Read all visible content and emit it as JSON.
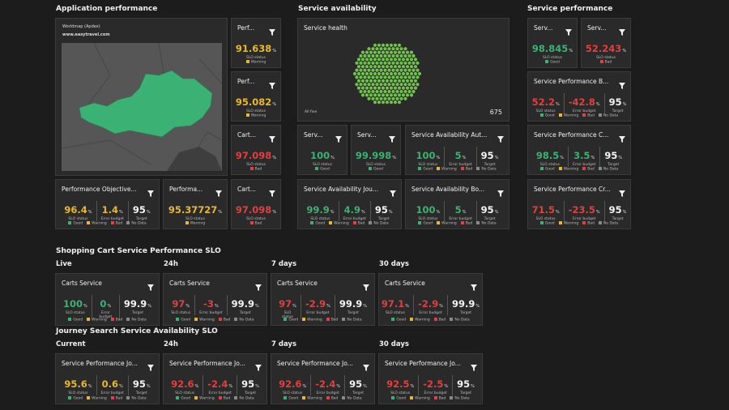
{
  "headings": [
    "Application performance",
    "Service availability",
    "Service performance",
    "Shopping Cart Service Performance SLO",
    "Journey Search Service Availability SLO"
  ],
  "subheadings": [
    "Live",
    "24h",
    "7 days",
    "30 days",
    "Current",
    "24h",
    "7 days",
    "30 days"
  ],
  "map": {
    "title": "Worldmap (Apdex)",
    "url": "www.easytravel.com"
  },
  "health": {
    "title": "Service health",
    "footer": "All five",
    "count": 675
  },
  "unit": "%",
  "labels": {
    "slo": "SLO status",
    "budget": "Error budget",
    "target": "Target"
  },
  "legend_colors": {
    "Good": "#3bb273",
    "Warning": "#e8b92c",
    "Bad": "#e0403f",
    "No Data": "#8a8a8a"
  },
  "tiles": [
    {
      "title": "Perf...",
      "slo": 91.638,
      "color": "#e8b92c",
      "legend": [
        "Warning"
      ]
    },
    {
      "title": "Perf...",
      "slo": 95.082,
      "color": "#e8b92c",
      "legend": [
        "Warning"
      ]
    },
    {
      "title": "Cart...",
      "slo": 97.098,
      "color": "#e0403f",
      "legend": [
        "Bad"
      ]
    },
    {
      "title": "Performance Objective...",
      "slo": 96.4,
      "budget": 1.4,
      "target": 95,
      "color": "#e8b92c",
      "legend": [
        "Good",
        "Warning",
        "Bad",
        "No Data"
      ]
    },
    {
      "title": "Performa...",
      "slo": 95.37727,
      "color": "#e8b92c",
      "legend": [
        "Warning"
      ]
    },
    {
      "title": "Cart...",
      "slo": 97.098,
      "color": "#e0403f",
      "legend": [
        "Bad"
      ]
    },
    {
      "title": "Serv...",
      "slo": 100,
      "color": "#3bb273",
      "legend": [
        "Good"
      ]
    },
    {
      "title": "Serv...",
      "slo": 99.998,
      "color": "#3bb273",
      "legend": [
        "Good"
      ]
    },
    {
      "title": "Service Availability Aut...",
      "slo": 100,
      "budget": 5,
      "target": 95,
      "color": "#3bb273",
      "legend": [
        "Good",
        "Warning",
        "Bad",
        "No Data"
      ]
    },
    {
      "title": "Service Availability Jou...",
      "slo": 99.9,
      "budget": 4.9,
      "target": 95,
      "color": "#3bb273",
      "legend": [
        "Good",
        "Warning",
        "Bad",
        "No Data"
      ]
    },
    {
      "title": "Service Availability Bo...",
      "slo": 100,
      "budget": 5,
      "target": 95,
      "color": "#3bb273",
      "legend": [
        "Good",
        "Warning",
        "Bad",
        "No Data"
      ]
    },
    {
      "title": "Serv...",
      "slo": 98.845,
      "color": "#3bb273",
      "legend": [
        "Good"
      ]
    },
    {
      "title": "Serv...",
      "slo": 52.243,
      "color": "#e0403f",
      "legend": [
        "Bad"
      ]
    },
    {
      "title": "Service Performance B...",
      "slo": 52.2,
      "budget": -42.8,
      "target": 95,
      "color": "#e0403f",
      "legend": [
        "Good",
        "Warning",
        "Bad",
        "No Data"
      ]
    },
    {
      "title": "Service Performance C...",
      "slo": 98.5,
      "budget": 3.5,
      "target": 95,
      "color": "#3bb273",
      "legend": [
        "Good",
        "Warning",
        "Bad",
        "No Data"
      ]
    },
    {
      "title": "Service Performance Cr...",
      "slo": 71.5,
      "budget": -23.5,
      "target": 95,
      "color": "#e0403f",
      "legend": [
        "Good",
        "Warning",
        "Bad",
        "No Data"
      ]
    },
    {
      "title": "Carts Service",
      "slo": 100,
      "budget": 0,
      "target": 99.9,
      "color": "#3bb273",
      "legend": [
        "Good",
        "Warning",
        "Bad",
        "No Data"
      ]
    },
    {
      "title": "Carts Service",
      "slo": 97,
      "budget": -3,
      "target": 99.9,
      "color": "#e0403f",
      "legend": [
        "Good",
        "Warning",
        "Bad",
        "No Data"
      ]
    },
    {
      "title": "Carts Service",
      "slo": 97,
      "budget": -2.9,
      "target": 99.9,
      "color": "#e0403f",
      "legend": [
        "Good",
        "Warning",
        "Bad",
        "No Data"
      ]
    },
    {
      "title": "Carts Service",
      "slo": 97.1,
      "budget": -2.9,
      "target": 99.9,
      "color": "#e0403f",
      "legend": [
        "Good",
        "Warning",
        "Bad",
        "No Data"
      ]
    },
    {
      "title": "Service Performance Jo...",
      "slo": 95.6,
      "budget": 0.6,
      "target": 95,
      "color": "#e8b92c",
      "legend": [
        "Good",
        "Warning",
        "Bad",
        "No Data"
      ]
    },
    {
      "title": "Service Performance Jo...",
      "slo": 92.6,
      "budget": -2.4,
      "target": 95,
      "color": "#e0403f",
      "legend": [
        "Good",
        "Warning",
        "Bad",
        "No Data"
      ]
    },
    {
      "title": "Service Performance Jo...",
      "slo": 92.6,
      "budget": -2.4,
      "target": 95,
      "color": "#e0403f",
      "legend": [
        "Good",
        "Warning",
        "Bad",
        "No Data"
      ]
    },
    {
      "title": "Service Performance Jo...",
      "slo": 92.5,
      "budget": -2.5,
      "target": 95,
      "color": "#e0403f",
      "legend": [
        "Good",
        "Warning",
        "Bad",
        "No Data"
      ]
    }
  ]
}
